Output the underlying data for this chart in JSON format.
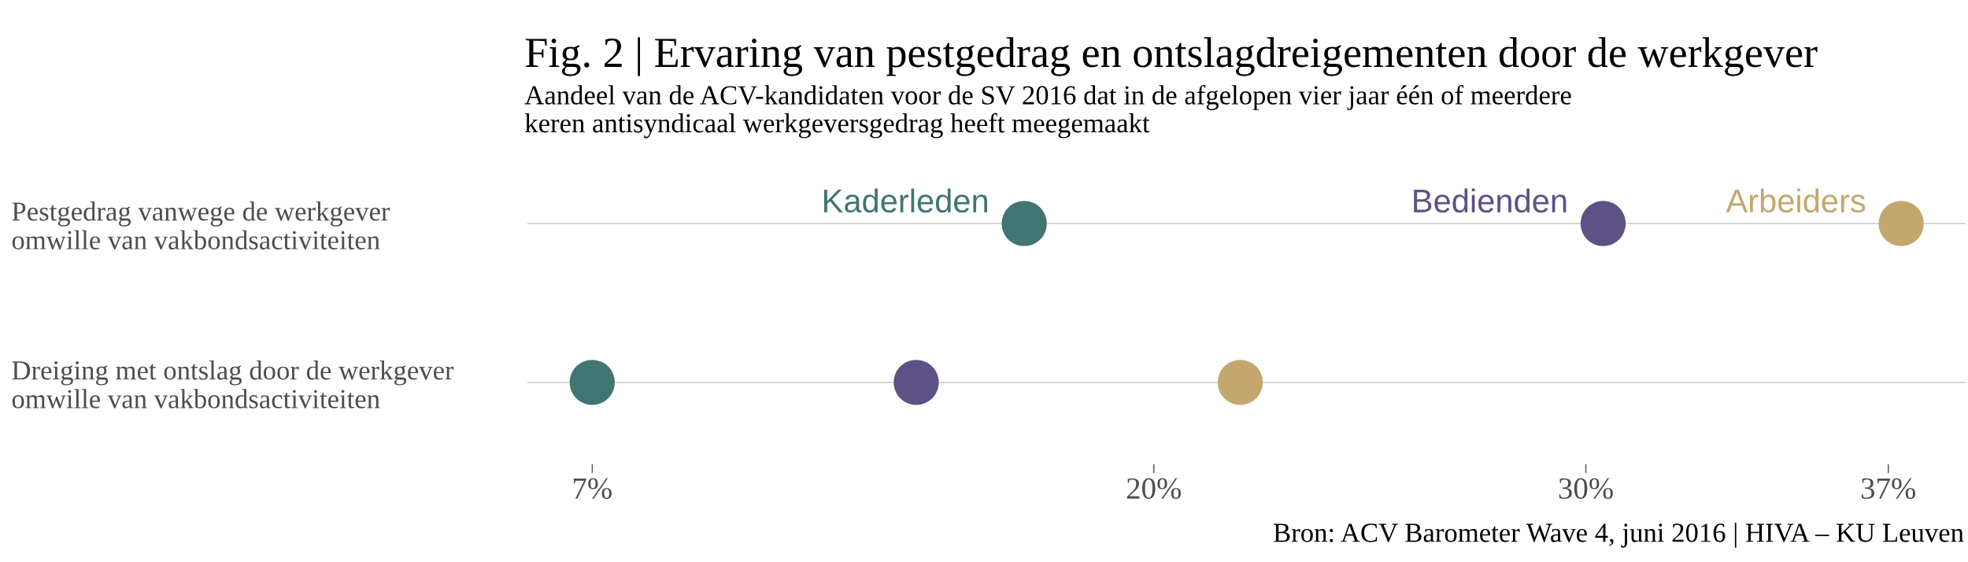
{
  "chart_data": {
    "type": "scatter",
    "orientation": "horizontal",
    "title": "Fig. 2 | Ervaring van pestgedrag en ontslagdreigementen door de werkgever",
    "subtitle": "Aandeel van de ACV-kandidaten voor de SV 2016 dat in de afgelopen vier jaar één of meerdere\nkeren antisyndicaal werkgeversgedrag heeft meegemaakt",
    "categories": [
      "Pestgedrag vanwege de werkgever\nomwille van vakbondsactiviteiten",
      "Dreiging met ontslag door de werkgever\nomwille van vakbondsactiviteiten"
    ],
    "series": [
      {
        "name": "Kaderleden",
        "color": "#417574",
        "values": [
          17,
          7
        ]
      },
      {
        "name": "Bedienden",
        "color": "#5e5186",
        "values": [
          30.4,
          14.5
        ]
      },
      {
        "name": "Arbeiders",
        "color": "#c4a76e",
        "values": [
          37.3,
          22
        ]
      }
    ],
    "xlim": [
      5.5,
      38.8
    ],
    "xticks": [
      {
        "value": 7,
        "label": "7%"
      },
      {
        "value": 20,
        "label": "20%"
      },
      {
        "value": 30,
        "label": "30%"
      },
      {
        "value": 37,
        "label": "37%"
      }
    ],
    "grid": "y",
    "legend": false,
    "marker": "circle",
    "annotations": [
      "Bron: ACV Barometer Wave 4, juni 2016 | HIVA – KU Leuven"
    ]
  }
}
